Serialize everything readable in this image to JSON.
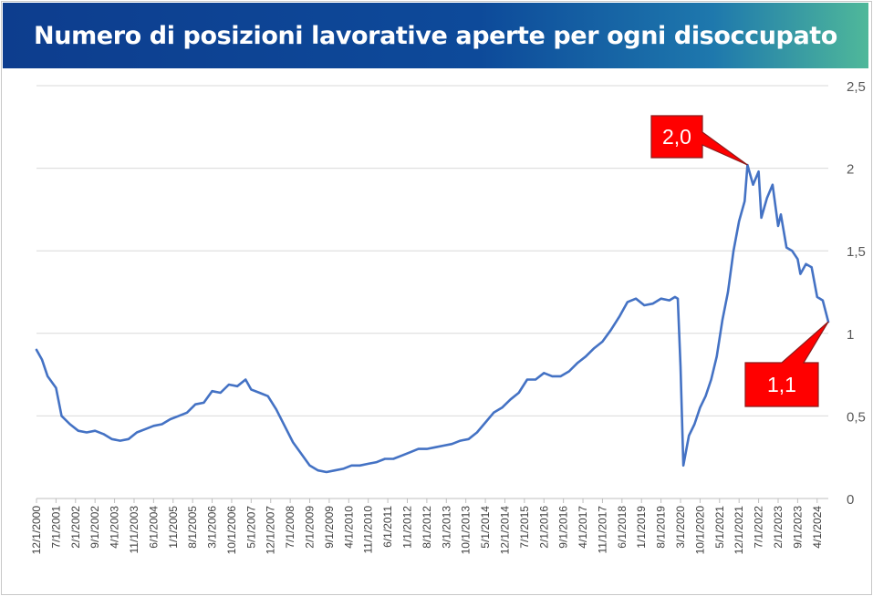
{
  "title": "Numero di posizioni lavorative aperte per ogni disoccupato",
  "colors": {
    "line": "#4472C4",
    "grid": "#d9d9d9",
    "callout_fill": "#ff0000",
    "callout_border": "#8b1a1a",
    "banner_start": "#0d3d8e",
    "banner_end": "#4fb89a"
  },
  "chart_data": {
    "type": "line",
    "title": "Numero di posizioni lavorative aperte per ogni disoccupato",
    "xlabel": "",
    "ylabel": "",
    "ylim": [
      0,
      2.5
    ],
    "yticks": [
      0,
      0.5,
      1,
      1.5,
      2,
      2.5
    ],
    "ytick_labels": [
      "0",
      "0,5",
      "1",
      "1,5",
      "2",
      "2,5"
    ],
    "y_axis_side": "right",
    "grid": true,
    "x_range": [
      "2000-12",
      "2024-08"
    ],
    "xtick_labels": [
      "12/1/2000",
      "7/1/2001",
      "2/1/2002",
      "9/1/2002",
      "4/1/2003",
      "11/1/2003",
      "6/1/2004",
      "1/1/2005",
      "8/1/2005",
      "3/1/2006",
      "10/1/2006",
      "5/1/2007",
      "12/1/2007",
      "7/1/2008",
      "2/1/2009",
      "9/1/2009",
      "4/1/2010",
      "11/1/2010",
      "6/1/2011",
      "1/1/2012",
      "8/1/2012",
      "3/1/2013",
      "10/1/2013",
      "5/1/2014",
      "12/1/2014",
      "7/1/2015",
      "2/1/2016",
      "9/1/2016",
      "4/1/2017",
      "11/1/2017",
      "6/1/2018",
      "1/1/2019",
      "8/1/2019",
      "3/1/2020",
      "10/1/2020",
      "5/1/2021",
      "12/1/2021",
      "7/1/2022",
      "2/1/2023",
      "9/1/2023",
      "4/1/2024"
    ],
    "series": [
      {
        "values": [
          [
            "2000-12",
            0.9
          ],
          [
            "2001-02",
            0.84
          ],
          [
            "2001-04",
            0.74
          ],
          [
            "2001-07",
            0.67
          ],
          [
            "2001-09",
            0.5
          ],
          [
            "2001-12",
            0.45
          ],
          [
            "2002-03",
            0.41
          ],
          [
            "2002-06",
            0.4
          ],
          [
            "2002-09",
            0.41
          ],
          [
            "2002-12",
            0.39
          ],
          [
            "2003-03",
            0.36
          ],
          [
            "2003-06",
            0.35
          ],
          [
            "2003-09",
            0.36
          ],
          [
            "2003-12",
            0.4
          ],
          [
            "2004-03",
            0.42
          ],
          [
            "2004-06",
            0.44
          ],
          [
            "2004-09",
            0.45
          ],
          [
            "2004-12",
            0.48
          ],
          [
            "2005-03",
            0.5
          ],
          [
            "2005-06",
            0.52
          ],
          [
            "2005-09",
            0.57
          ],
          [
            "2005-12",
            0.58
          ],
          [
            "2006-03",
            0.65
          ],
          [
            "2006-06",
            0.64
          ],
          [
            "2006-09",
            0.69
          ],
          [
            "2006-12",
            0.68
          ],
          [
            "2007-03",
            0.72
          ],
          [
            "2007-05",
            0.66
          ],
          [
            "2007-08",
            0.64
          ],
          [
            "2007-11",
            0.62
          ],
          [
            "2008-02",
            0.54
          ],
          [
            "2008-05",
            0.44
          ],
          [
            "2008-08",
            0.34
          ],
          [
            "2008-11",
            0.27
          ],
          [
            "2009-02",
            0.2
          ],
          [
            "2009-05",
            0.17
          ],
          [
            "2009-08",
            0.16
          ],
          [
            "2009-11",
            0.17
          ],
          [
            "2010-02",
            0.18
          ],
          [
            "2010-05",
            0.2
          ],
          [
            "2010-08",
            0.2
          ],
          [
            "2010-11",
            0.21
          ],
          [
            "2011-02",
            0.22
          ],
          [
            "2011-05",
            0.24
          ],
          [
            "2011-08",
            0.24
          ],
          [
            "2011-11",
            0.26
          ],
          [
            "2012-02",
            0.28
          ],
          [
            "2012-05",
            0.3
          ],
          [
            "2012-08",
            0.3
          ],
          [
            "2012-11",
            0.31
          ],
          [
            "2013-02",
            0.32
          ],
          [
            "2013-05",
            0.33
          ],
          [
            "2013-08",
            0.35
          ],
          [
            "2013-11",
            0.36
          ],
          [
            "2014-02",
            0.4
          ],
          [
            "2014-05",
            0.46
          ],
          [
            "2014-08",
            0.52
          ],
          [
            "2014-11",
            0.55
          ],
          [
            "2015-02",
            0.6
          ],
          [
            "2015-05",
            0.64
          ],
          [
            "2015-08",
            0.72
          ],
          [
            "2015-11",
            0.72
          ],
          [
            "2016-02",
            0.76
          ],
          [
            "2016-05",
            0.74
          ],
          [
            "2016-08",
            0.74
          ],
          [
            "2016-11",
            0.77
          ],
          [
            "2017-02",
            0.82
          ],
          [
            "2017-05",
            0.86
          ],
          [
            "2017-08",
            0.91
          ],
          [
            "2017-11",
            0.95
          ],
          [
            "2018-02",
            1.02
          ],
          [
            "2018-05",
            1.1
          ],
          [
            "2018-08",
            1.19
          ],
          [
            "2018-11",
            1.21
          ],
          [
            "2019-02",
            1.17
          ],
          [
            "2019-05",
            1.18
          ],
          [
            "2019-08",
            1.21
          ],
          [
            "2019-11",
            1.2
          ],
          [
            "2020-01",
            1.22
          ],
          [
            "2020-02",
            1.21
          ],
          [
            "2020-03",
            0.8
          ],
          [
            "2020-04",
            0.2
          ],
          [
            "2020-06",
            0.38
          ],
          [
            "2020-08",
            0.45
          ],
          [
            "2020-10",
            0.55
          ],
          [
            "2020-12",
            0.62
          ],
          [
            "2021-02",
            0.72
          ],
          [
            "2021-04",
            0.86
          ],
          [
            "2021-06",
            1.08
          ],
          [
            "2021-08",
            1.25
          ],
          [
            "2021-10",
            1.5
          ],
          [
            "2021-12",
            1.68
          ],
          [
            "2022-02",
            1.8
          ],
          [
            "2022-03",
            2.02
          ],
          [
            "2022-05",
            1.9
          ],
          [
            "2022-07",
            1.98
          ],
          [
            "2022-08",
            1.7
          ],
          [
            "2022-10",
            1.82
          ],
          [
            "2022-12",
            1.9
          ],
          [
            "2023-02",
            1.65
          ],
          [
            "2023-03",
            1.72
          ],
          [
            "2023-05",
            1.52
          ],
          [
            "2023-07",
            1.5
          ],
          [
            "2023-09",
            1.45
          ],
          [
            "2023-10",
            1.36
          ],
          [
            "2023-12",
            1.42
          ],
          [
            "2024-02",
            1.4
          ],
          [
            "2024-04",
            1.22
          ],
          [
            "2024-06",
            1.2
          ],
          [
            "2024-08",
            1.07
          ]
        ]
      }
    ],
    "annotations": [
      {
        "text": "2,0",
        "x": "2022-03",
        "y": 2.02
      },
      {
        "text": "1,1",
        "x": "2024-08",
        "y": 1.07
      }
    ]
  }
}
